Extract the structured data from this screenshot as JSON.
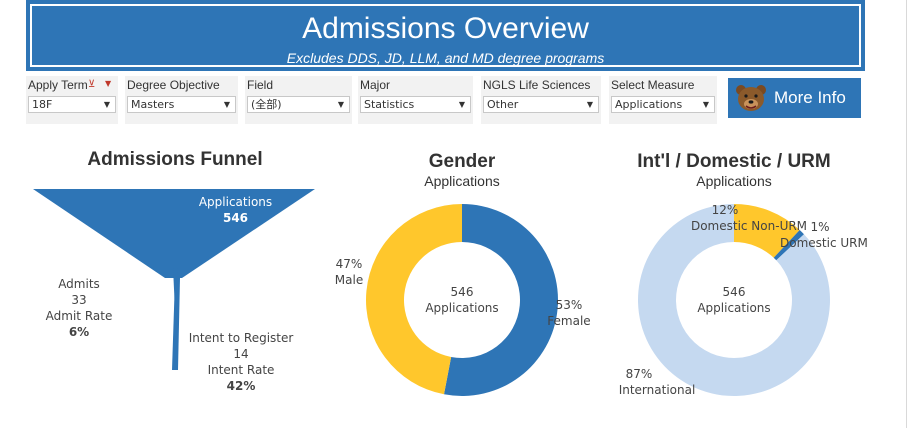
{
  "header": {
    "title": "Admissions Overview",
    "subtitle": "Excludes DDS, JD, LLM, and MD degree programs"
  },
  "filters": [
    {
      "label": "Apply Term",
      "value": "18F"
    },
    {
      "label": "Degree Objective",
      "value": "Masters"
    },
    {
      "label": "Field",
      "value": "(全部)"
    },
    {
      "label": "Major",
      "value": "Statistics"
    },
    {
      "label": "NGLS Life Sciences",
      "value": "Other"
    },
    {
      "label": "Select Measure",
      "value": "Applications"
    }
  ],
  "more_info": {
    "label": "More Info",
    "icon": "bear-icon"
  },
  "funnel": {
    "title": "Admissions Funnel",
    "applications": {
      "label": "Applications",
      "value": "546"
    },
    "admits": {
      "label": "Admits",
      "value": "33",
      "rate_label": "Admit Rate",
      "rate": "6%"
    },
    "intent": {
      "label": "Intent to Register",
      "value": "14",
      "rate_label": "Intent Rate",
      "rate": "42%"
    }
  },
  "gender": {
    "title": "Gender",
    "subtitle": "Applications",
    "center_value": "546",
    "center_label": "Applications",
    "male": {
      "label": "Male",
      "pct": "47%"
    },
    "female": {
      "label": "Female",
      "pct": "53%"
    }
  },
  "residency": {
    "title": "Int'l / Domestic / URM",
    "subtitle": "Applications",
    "center_value": "546",
    "center_label": "Applications",
    "non_urm": {
      "label": "Domestic Non-URM",
      "pct": "12%"
    },
    "urm": {
      "label": "Domestic URM",
      "pct": "1%"
    },
    "international": {
      "label": "International",
      "pct": "87%"
    }
  },
  "colors": {
    "brand_blue": "#2e75b6",
    "gold": "#ffc72c",
    "light_blue": "#c5d9f0",
    "panel": "#f2f2f2"
  },
  "chart_data": [
    {
      "type": "bar",
      "title": "Admissions Funnel",
      "categories": [
        "Applications",
        "Admits",
        "Intent to Register"
      ],
      "values": [
        546,
        33,
        14
      ]
    },
    {
      "type": "pie",
      "title": "Gender",
      "subtitle": "Applications",
      "categories": [
        "Female",
        "Male"
      ],
      "values": [
        53,
        47
      ]
    },
    {
      "type": "pie",
      "title": "Int'l / Domestic / URM",
      "subtitle": "Applications",
      "categories": [
        "Domestic Non-URM",
        "Domestic URM",
        "International"
      ],
      "values": [
        12,
        1,
        87
      ]
    }
  ]
}
